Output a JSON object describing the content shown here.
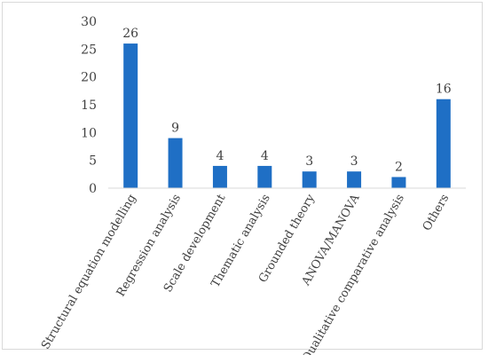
{
  "chart_data": {
    "type": "bar",
    "title": "",
    "xlabel": "",
    "ylabel": "",
    "categories": [
      "Structural equation modelling",
      "Regression analysis",
      "Scale development",
      "Thematic analysis",
      "Grounded theory",
      "ANOVA/MANOVA",
      "Qualitative comparative analysis",
      "Others"
    ],
    "values": [
      26,
      9,
      4,
      4,
      3,
      3,
      2,
      16
    ],
    "ylim": [
      0,
      30
    ],
    "yticks": [
      0,
      5,
      10,
      15,
      20,
      25,
      30
    ],
    "data_labels": true,
    "grid": false,
    "legend": "none",
    "bar_color": "#1f6fc5"
  }
}
